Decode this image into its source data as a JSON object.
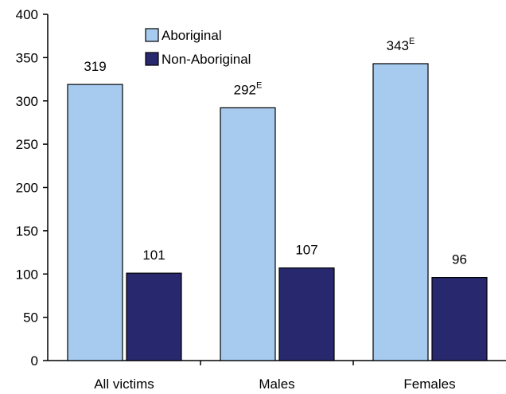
{
  "chart_data": {
    "type": "bar",
    "categories": [
      "All victims",
      "Males",
      "Females"
    ],
    "series": [
      {
        "name": "Aboriginal",
        "color": "#a6cbef",
        "values": [
          319,
          292,
          343
        ],
        "labels": [
          {
            "text": "319",
            "sup": ""
          },
          {
            "text": "292",
            "sup": "E"
          },
          {
            "text": "343",
            "sup": "E"
          }
        ]
      },
      {
        "name": "Non-Aboriginal",
        "color": "#28286e",
        "values": [
          101,
          107,
          96
        ],
        "labels": [
          {
            "text": "101",
            "sup": ""
          },
          {
            "text": "107",
            "sup": ""
          },
          {
            "text": "96",
            "sup": ""
          }
        ]
      }
    ],
    "ylim": [
      0,
      400
    ],
    "yticks": [
      0,
      50,
      100,
      150,
      200,
      250,
      300,
      350,
      400
    ],
    "title": "",
    "xlabel": "",
    "ylabel": "",
    "legend_position": "top-left",
    "grid": false
  }
}
